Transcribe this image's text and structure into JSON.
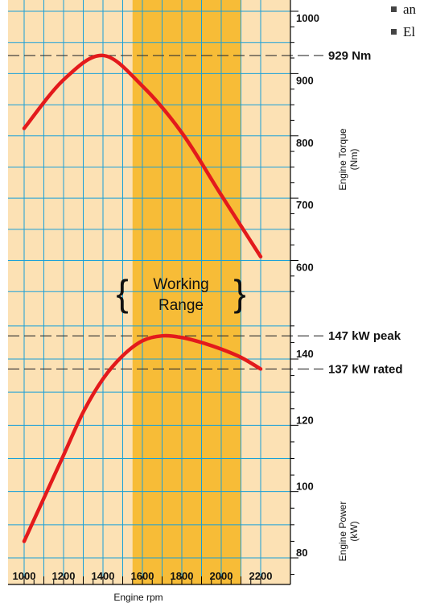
{
  "bullets": [
    "an",
    "El"
  ],
  "chart_data": [
    {
      "type": "line",
      "xlabel": "Engine rpm",
      "ylabel": "Engine Torque\n(Nm)",
      "x_ticks": [
        1000,
        1200,
        1400,
        1600,
        1800,
        2000,
        2200
      ],
      "y_ticks": [
        600,
        700,
        800,
        900,
        1000
      ],
      "ylim": [
        500,
        1000
      ],
      "series": [
        {
          "x": [
            1000,
            1200,
            1400,
            1600,
            1800,
            2000,
            2200
          ],
          "y": [
            812,
            890,
            929,
            880,
            805,
            705,
            606
          ]
        }
      ],
      "reference_lines": [
        {
          "y": 929,
          "label": "929 Nm"
        }
      ]
    },
    {
      "type": "line",
      "xlabel": "Engine rpm",
      "ylabel": "Engine Power\n(kW)",
      "x_ticks": [
        1000,
        1200,
        1400,
        1600,
        1800,
        2000,
        2200
      ],
      "y_ticks": [
        80,
        100,
        120,
        140
      ],
      "ylim": [
        70,
        150
      ],
      "series": [
        {
          "x": [
            1000,
            1100,
            1200,
            1300,
            1400,
            1500,
            1600,
            1700,
            1800,
            1900,
            2000,
            2100,
            2200
          ],
          "y": [
            85,
            98,
            111,
            124,
            134,
            141,
            145.5,
            147,
            146.5,
            145,
            143,
            140.5,
            137
          ]
        }
      ],
      "reference_lines": [
        {
          "y": 147,
          "label": "147 kW peak"
        },
        {
          "y": 137,
          "label": "137 kW rated"
        }
      ]
    }
  ],
  "working_range": {
    "x_start": 1550,
    "x_end": 2100,
    "label_line1": "Working",
    "label_line2": "Range"
  },
  "colors": {
    "background": "#fce1b4",
    "band": "#f7bc37",
    "grid": "#19a0d9",
    "curve": "#e31a1c",
    "dash": "#333333"
  }
}
